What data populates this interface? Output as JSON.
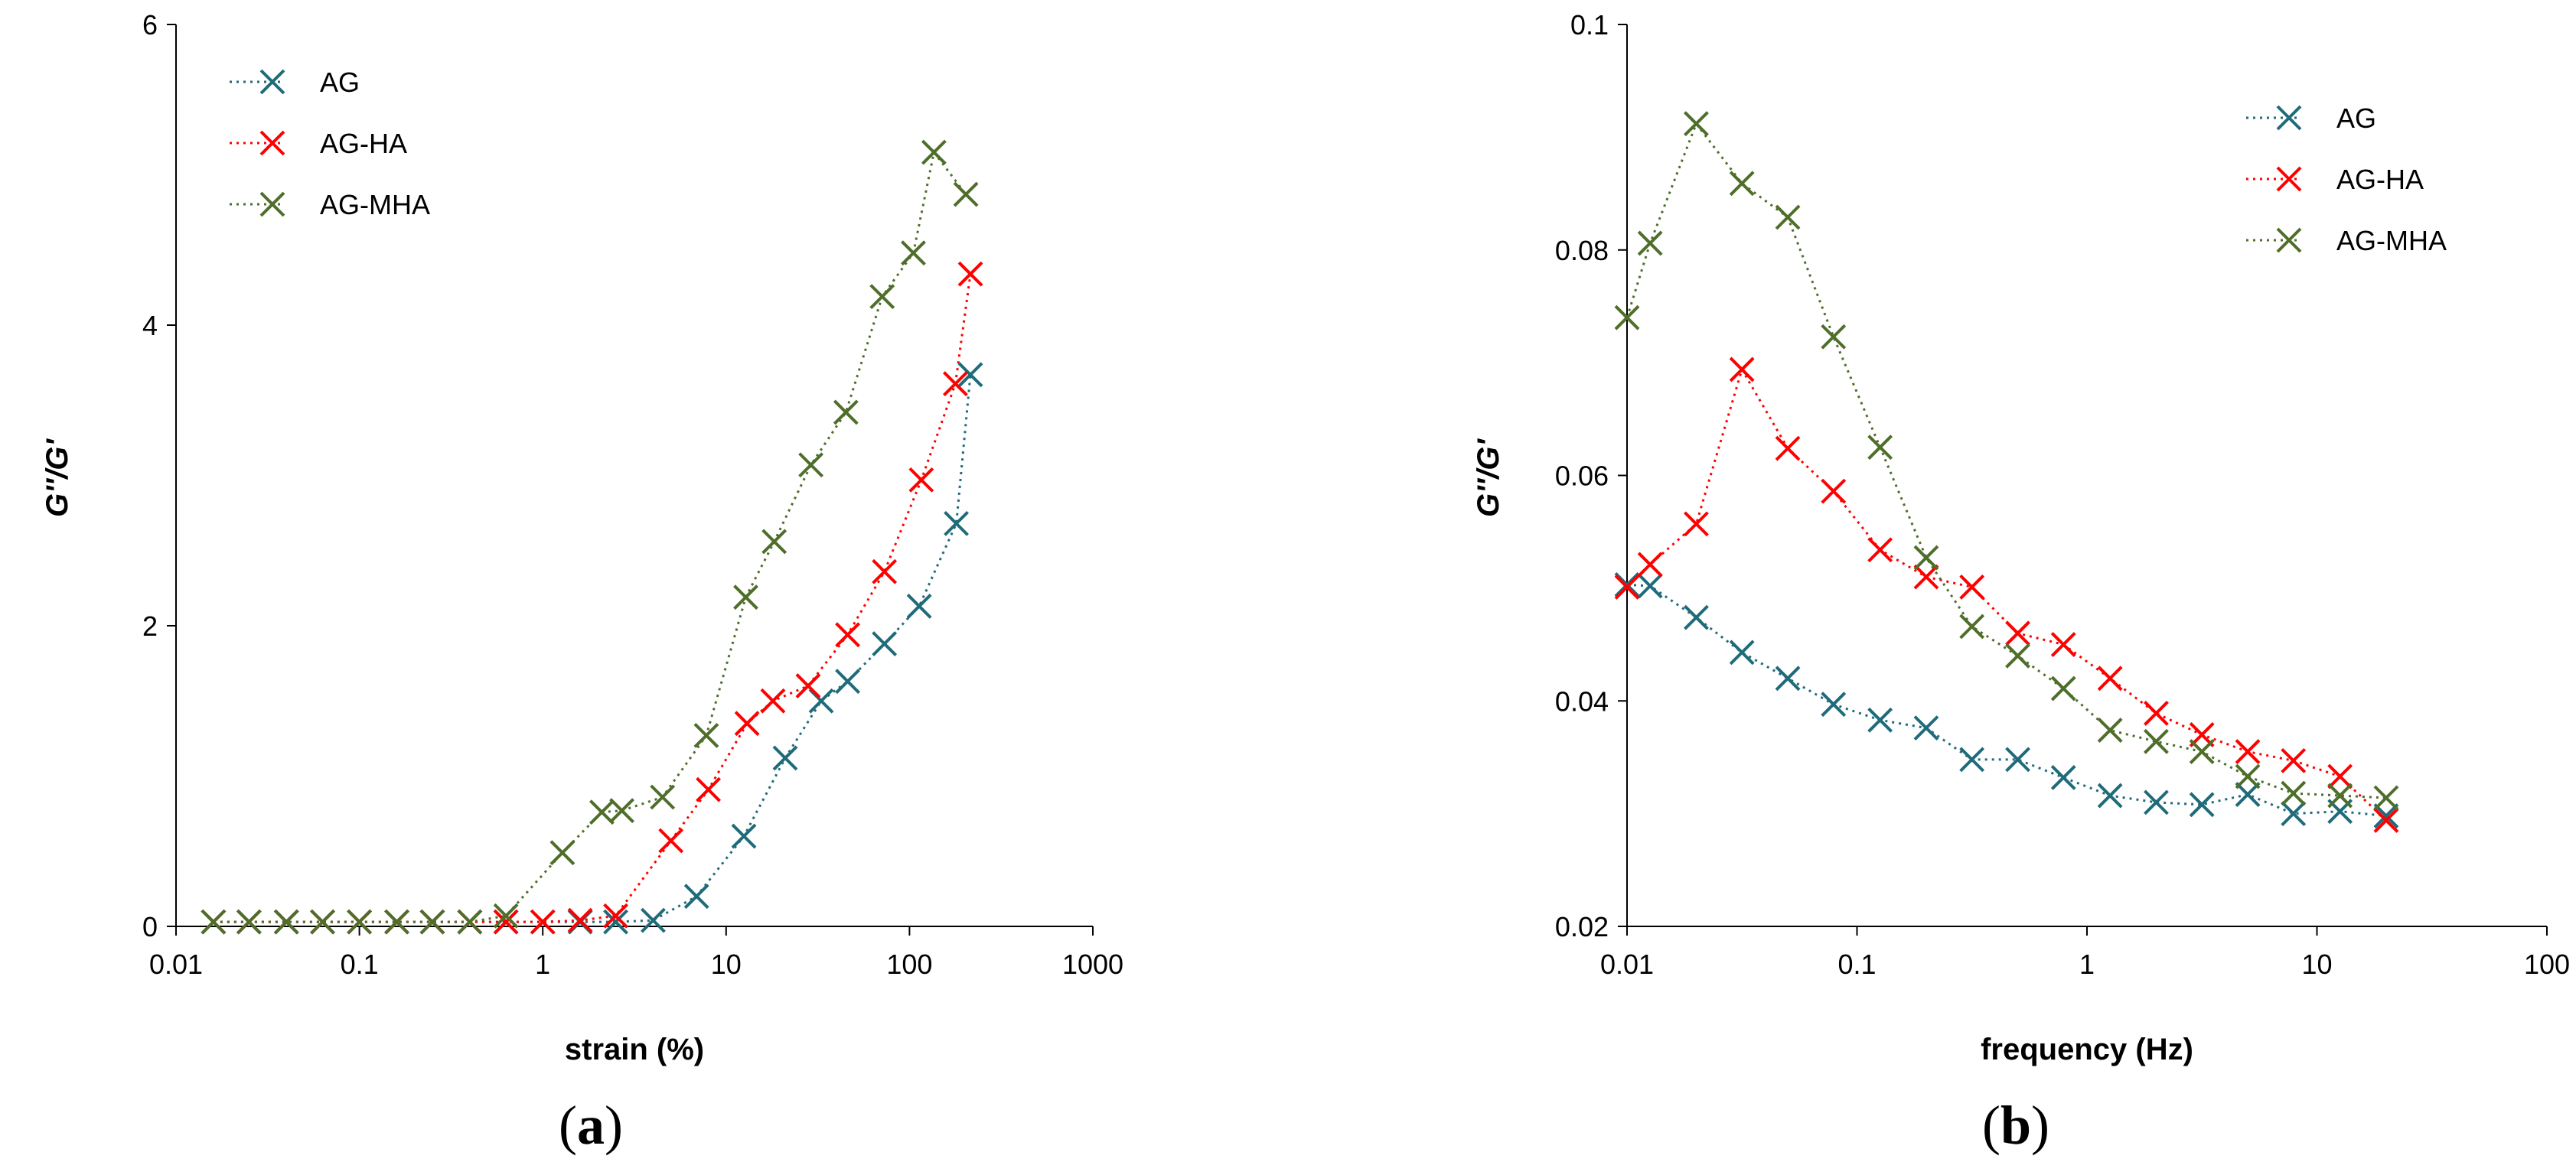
{
  "chart_data": [
    {
      "type": "scatter",
      "panel": "a",
      "xlabel": "strain (%)",
      "ylabel": "G''/G'",
      "xscale": "log",
      "xlim": [
        0.01,
        1000
      ],
      "ylim": [
        0,
        6
      ],
      "xticks": [
        "0.01",
        "0.1",
        "1",
        "10",
        "100",
        "1000"
      ],
      "yticks": [
        "0",
        "2",
        "4",
        "6"
      ],
      "grid": false,
      "legend_position": "top-left",
      "series": [
        {
          "name": "AG",
          "color": "#1f6b7a",
          "x": [
            0.016,
            0.025,
            0.04,
            0.063,
            0.1,
            0.16,
            0.25,
            0.4,
            0.63,
            1.0,
            1.6,
            2.5,
            4.0,
            6.9,
            12.5,
            21,
            33,
            46,
            73,
            113,
            180,
            215
          ],
          "y": [
            0.03,
            0.03,
            0.03,
            0.03,
            0.03,
            0.03,
            0.03,
            0.03,
            0.03,
            0.03,
            0.03,
            0.03,
            0.04,
            0.2,
            0.6,
            1.12,
            1.5,
            1.63,
            1.88,
            2.13,
            2.68,
            3.67
          ]
        },
        {
          "name": "AG-HA",
          "color": "#ff0000",
          "x": [
            0.016,
            0.025,
            0.04,
            0.063,
            0.1,
            0.16,
            0.25,
            0.4,
            0.63,
            1.0,
            1.6,
            2.5,
            5.0,
            8.0,
            13,
            18,
            28,
            46,
            73,
            116,
            178,
            215
          ],
          "y": [
            0.03,
            0.03,
            0.03,
            0.03,
            0.03,
            0.03,
            0.03,
            0.03,
            0.03,
            0.03,
            0.04,
            0.07,
            0.57,
            0.91,
            1.35,
            1.5,
            1.6,
            1.94,
            2.36,
            2.97,
            3.61,
            4.34
          ]
        },
        {
          "name": "AG-MHA",
          "color": "#4e6e2a",
          "x": [
            0.016,
            0.025,
            0.04,
            0.063,
            0.1,
            0.16,
            0.25,
            0.4,
            0.63,
            1.28,
            2.1,
            2.7,
            4.5,
            7.8,
            12.8,
            18.3,
            29,
            45,
            71,
            105,
            136,
            203
          ],
          "y": [
            0.03,
            0.03,
            0.03,
            0.03,
            0.03,
            0.03,
            0.03,
            0.03,
            0.07,
            0.49,
            0.76,
            0.77,
            0.86,
            1.27,
            2.19,
            2.56,
            3.07,
            3.42,
            4.19,
            4.48,
            5.15,
            4.87
          ]
        }
      ]
    },
    {
      "type": "scatter",
      "panel": "b",
      "xlabel": "frequency (Hz)",
      "ylabel": "G''/G'",
      "xscale": "log",
      "xlim": [
        0.01,
        100
      ],
      "ylim": [
        0.02,
        0.1
      ],
      "xticks": [
        "0.01",
        "0.1",
        "1",
        "10",
        "100"
      ],
      "yticks": [
        "0.02",
        "0.04",
        "0.06",
        "0.08",
        "0.1"
      ],
      "grid": false,
      "legend_position": "top-right",
      "series": [
        {
          "name": "AG",
          "color": "#1f6b7a",
          "x": [
            0.01,
            0.0126,
            0.02,
            0.0316,
            0.05,
            0.079,
            0.126,
            0.2,
            0.316,
            0.5,
            0.79,
            1.26,
            2.0,
            3.16,
            5.0,
            7.9,
            12.6,
            20
          ],
          "y": [
            0.0503,
            0.0502,
            0.0474,
            0.0443,
            0.042,
            0.0397,
            0.0383,
            0.0376,
            0.0348,
            0.0348,
            0.0332,
            0.0316,
            0.031,
            0.0308,
            0.0317,
            0.03,
            0.0302,
            0.0298
          ]
        },
        {
          "name": "AG-HA",
          "color": "#ff0000",
          "x": [
            0.01,
            0.0126,
            0.02,
            0.0316,
            0.05,
            0.079,
            0.126,
            0.2,
            0.316,
            0.5,
            0.79,
            1.26,
            2.0,
            3.16,
            5.0,
            7.9,
            12.6,
            20
          ],
          "y": [
            0.0501,
            0.0521,
            0.0557,
            0.0694,
            0.0624,
            0.0586,
            0.0534,
            0.051,
            0.0501,
            0.046,
            0.045,
            0.042,
            0.0389,
            0.037,
            0.0355,
            0.0347,
            0.0333,
            0.0294
          ]
        },
        {
          "name": "AG-MHA",
          "color": "#4e6e2a",
          "x": [
            0.01,
            0.0126,
            0.02,
            0.0316,
            0.05,
            0.079,
            0.126,
            0.2,
            0.316,
            0.5,
            0.79,
            1.26,
            2.0,
            3.16,
            5.0,
            7.9,
            12.6,
            20
          ],
          "y": [
            0.074,
            0.0806,
            0.0912,
            0.0859,
            0.0829,
            0.0723,
            0.0625,
            0.0527,
            0.0466,
            0.044,
            0.0411,
            0.0374,
            0.0364,
            0.0355,
            0.0333,
            0.0318,
            0.0316,
            0.0314
          ]
        }
      ]
    }
  ],
  "panels": {
    "a": "a",
    "b": "b"
  }
}
